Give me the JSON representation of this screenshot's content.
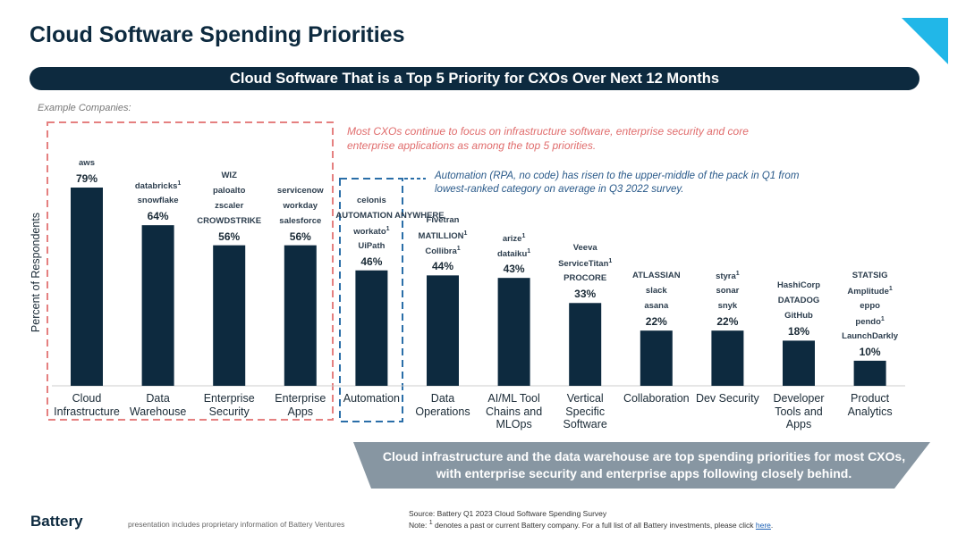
{
  "header": {
    "title": "Cloud Software Spending Priorities"
  },
  "chart_data": {
    "type": "bar",
    "title": "Cloud Software That is a Top 5 Priority for CXOs Over Next 12 Months",
    "y_label": "Percent of Respondents",
    "companies_label": "Example Companies:",
    "categories": [
      "Cloud Infrastructure",
      "Data Warehouse",
      "Enterprise Security",
      "Enterprise Apps",
      "Automation",
      "Data Operations",
      "AI/ML Tool Chains and MLOps",
      "Vertical Specific Software",
      "Collaboration",
      "Dev Security",
      "Developer Tools and Apps",
      "Product Analytics"
    ],
    "values": [
      79,
      64,
      56,
      56,
      46,
      44,
      43,
      33,
      22,
      22,
      18,
      10
    ],
    "value_labels": [
      "79%",
      "64%",
      "56%",
      "56%",
      "46%",
      "44%",
      "43%",
      "33%",
      "22%",
      "22%",
      "18%",
      "10%"
    ],
    "color": "#0d2a3f",
    "ylim": [
      0,
      100
    ],
    "companies": [
      [
        {
          "name": "aws"
        }
      ],
      [
        {
          "name": "databricks",
          "note": "1"
        },
        {
          "name": "snowflake"
        }
      ],
      [
        {
          "name": "WIZ"
        },
        {
          "name": "paloalto"
        },
        {
          "name": "zscaler"
        },
        {
          "name": "CROWDSTRIKE"
        }
      ],
      [
        {
          "name": "servicenow"
        },
        {
          "name": "workday"
        },
        {
          "name": "salesforce"
        }
      ],
      [
        {
          "name": "celonis"
        },
        {
          "name": "AUTOMATION ANYWHERE"
        },
        {
          "name": "workato",
          "note": "1"
        },
        {
          "name": "UiPath"
        }
      ],
      [
        {
          "name": "Fivetran"
        },
        {
          "name": "MATILLION",
          "note": "1"
        },
        {
          "name": "Collibra",
          "note": "1"
        }
      ],
      [
        {
          "name": "arize",
          "note": "1"
        },
        {
          "name": "dataiku",
          "note": "1"
        }
      ],
      [
        {
          "name": "Veeva"
        },
        {
          "name": "ServiceTitan",
          "note": "1"
        },
        {
          "name": "PROCORE"
        }
      ],
      [
        {
          "name": "ATLASSIAN"
        },
        {
          "name": "slack"
        },
        {
          "name": "asana"
        }
      ],
      [
        {
          "name": "styra",
          "note": "1"
        },
        {
          "name": "sonar"
        },
        {
          "name": "snyk"
        }
      ],
      [
        {
          "name": "HashiCorp"
        },
        {
          "name": "DATADOG"
        },
        {
          "name": "GitHub"
        }
      ],
      [
        {
          "name": "STATSIG"
        },
        {
          "name": "Amplitude",
          "note": "1"
        },
        {
          "name": "eppo"
        },
        {
          "name": "pendo",
          "note": "1"
        },
        {
          "name": "LaunchDarkly"
        }
      ]
    ],
    "annotations": [
      "Most CXOs continue to focus on infrastructure software, enterprise security and core enterprise applications as among the top 5 priorities.",
      "Automation (RPA, no code) has risen to the upper-middle of the pack in Q1 from lowest-ranked category on average in Q3 2022 survey."
    ]
  },
  "callout": "Cloud infrastructure and the data warehouse are top spending priorities for most CXOs, with enterprise security and enterprise apps following closely behind.",
  "footer": {
    "brand": "Battery",
    "disclaimer": "presentation includes proprietary information of Battery Ventures",
    "source": "Source: Battery Q1 2023 Cloud Software Spending Survey",
    "note_prefix": "Note:",
    "note_mark": "1",
    "note_text": "denotes a past or current Battery company. For a full list of all Battery investments, please click",
    "note_link": "here"
  }
}
